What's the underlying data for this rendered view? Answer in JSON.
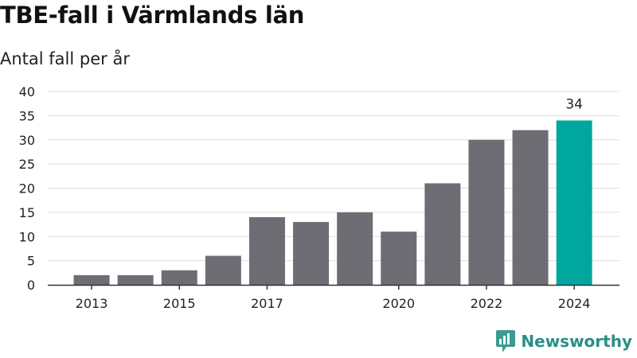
{
  "chart_data": {
    "type": "bar",
    "title": "TBE-fall i Värmlands län",
    "subtitle": "Antal fall per år",
    "categories": [
      2013,
      2014,
      2015,
      2016,
      2017,
      2018,
      2019,
      2020,
      2021,
      2022,
      2023,
      2024
    ],
    "values": [
      2,
      2,
      3,
      6,
      14,
      13,
      15,
      11,
      21,
      30,
      32,
      34
    ],
    "x_tick_labels": [
      "2013",
      "2015",
      "2017",
      "2020",
      "2022",
      "2024"
    ],
    "y_ticks": [
      0,
      5,
      10,
      15,
      20,
      25,
      30,
      35,
      40
    ],
    "ylim": [
      0,
      40
    ],
    "grid": true,
    "highlight": {
      "category": 2024,
      "label": "34",
      "color": "#00a79d"
    },
    "bar_color": "#6e6d73"
  },
  "branding": {
    "name": "Newsworthy",
    "logo_icon": "newsworthy-logo-icon",
    "color": "#2a8f86"
  }
}
